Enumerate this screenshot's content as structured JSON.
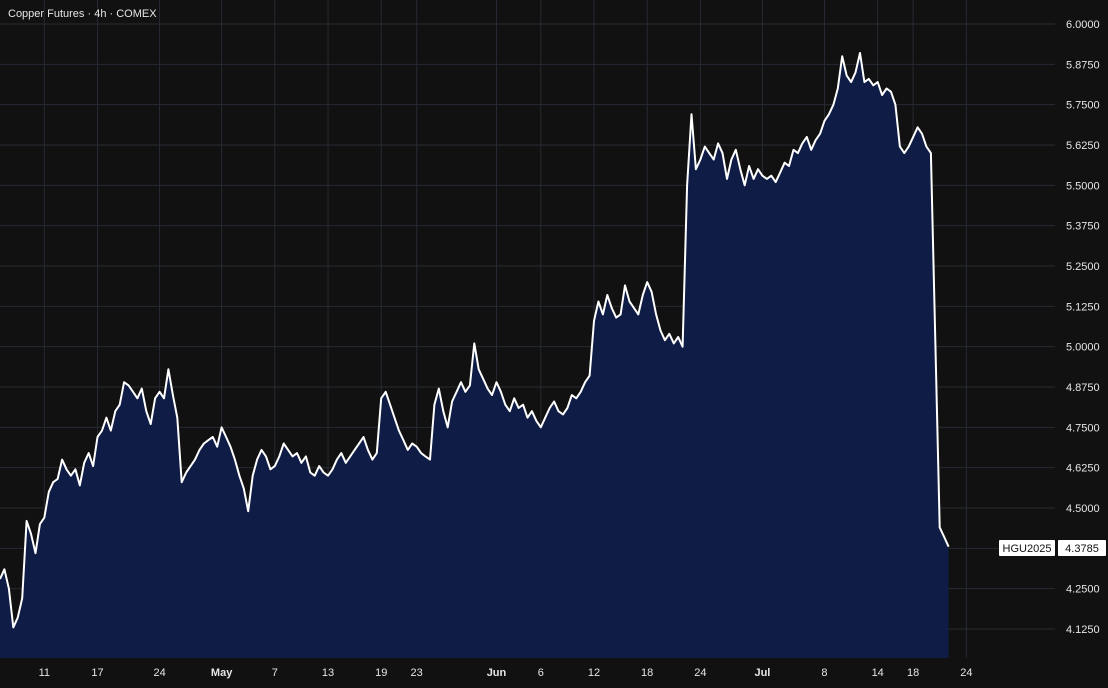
{
  "header": {
    "title": "Copper Futures · 4h · COMEX"
  },
  "colors": {
    "background": "#111111",
    "grid": "#262a33",
    "line": "#ffffff",
    "area_fill": "#0f1c45",
    "axis_text": "#e6e6e6",
    "tag_bg": "#ffffff",
    "tag_text": "#111111"
  },
  "chart_data": {
    "type": "area",
    "title": "Copper Futures · 4h · COMEX",
    "xlabel": "",
    "ylabel": "",
    "ylim": [
      4.03,
      6.02
    ],
    "grid": true,
    "y_ticks": [
      "6.0000",
      "5.8750",
      "5.7500",
      "5.6250",
      "5.5000",
      "5.3750",
      "5.2500",
      "5.1250",
      "5.0000",
      "4.8750",
      "4.7500",
      "4.6250",
      "4.5000",
      "4.3750",
      "4.2500",
      "4.1250"
    ],
    "y_tick_values": [
      6.0,
      5.875,
      5.75,
      5.625,
      5.5,
      5.375,
      5.25,
      5.125,
      5.0,
      4.875,
      4.75,
      4.625,
      4.5,
      4.375,
      4.25,
      4.125
    ],
    "x_ticks": [
      {
        "label": "11",
        "day": 11
      },
      {
        "label": "17",
        "day": 17
      },
      {
        "label": "24",
        "day": 24
      },
      {
        "label": "May",
        "day": 31,
        "bold": true
      },
      {
        "label": "7",
        "day": 37
      },
      {
        "label": "13",
        "day": 43
      },
      {
        "label": "19",
        "day": 49
      },
      {
        "label": "23",
        "day": 53
      },
      {
        "label": "Jun",
        "day": 62,
        "bold": true
      },
      {
        "label": "6",
        "day": 67
      },
      {
        "label": "12",
        "day": 73
      },
      {
        "label": "18",
        "day": 79
      },
      {
        "label": "24",
        "day": 85
      },
      {
        "label": "Jul",
        "day": 92,
        "bold": true
      },
      {
        "label": "8",
        "day": 99
      },
      {
        "label": "14",
        "day": 105
      },
      {
        "label": "18",
        "day": 109
      },
      {
        "label": "24",
        "day": 115
      }
    ],
    "xlim": [
      6,
      125
    ],
    "series": [
      {
        "points": [
          [
            6.0,
            4.28
          ],
          [
            6.5,
            4.31
          ],
          [
            7.0,
            4.25
          ],
          [
            7.5,
            4.13
          ],
          [
            8.0,
            4.16
          ],
          [
            8.5,
            4.22
          ],
          [
            9.0,
            4.46
          ],
          [
            9.5,
            4.42
          ],
          [
            10.0,
            4.36
          ],
          [
            10.5,
            4.45
          ],
          [
            11.0,
            4.47
          ],
          [
            11.5,
            4.55
          ],
          [
            12.0,
            4.58
          ],
          [
            12.5,
            4.59
          ],
          [
            13.0,
            4.65
          ],
          [
            13.5,
            4.62
          ],
          [
            14.0,
            4.6
          ],
          [
            14.5,
            4.62
          ],
          [
            15.0,
            4.57
          ],
          [
            15.5,
            4.64
          ],
          [
            16.0,
            4.67
          ],
          [
            16.5,
            4.63
          ],
          [
            17.0,
            4.72
          ],
          [
            17.5,
            4.74
          ],
          [
            18.0,
            4.78
          ],
          [
            18.5,
            4.74
          ],
          [
            19.0,
            4.8
          ],
          [
            19.5,
            4.82
          ],
          [
            20.0,
            4.89
          ],
          [
            20.5,
            4.88
          ],
          [
            21.0,
            4.86
          ],
          [
            21.5,
            4.84
          ],
          [
            22.0,
            4.87
          ],
          [
            22.5,
            4.8
          ],
          [
            23.0,
            4.76
          ],
          [
            23.5,
            4.84
          ],
          [
            24.0,
            4.86
          ],
          [
            24.5,
            4.84
          ],
          [
            25.0,
            4.93
          ],
          [
            25.5,
            4.85
          ],
          [
            26.0,
            4.78
          ],
          [
            26.5,
            4.58
          ],
          [
            27.0,
            4.61
          ],
          [
            27.5,
            4.63
          ],
          [
            28.0,
            4.65
          ],
          [
            28.5,
            4.68
          ],
          [
            29.0,
            4.7
          ],
          [
            29.5,
            4.71
          ],
          [
            30.0,
            4.72
          ],
          [
            30.5,
            4.69
          ],
          [
            31.0,
            4.75
          ],
          [
            31.5,
            4.72
          ],
          [
            32.0,
            4.69
          ],
          [
            32.5,
            4.65
          ],
          [
            33.0,
            4.6
          ],
          [
            33.5,
            4.56
          ],
          [
            34.0,
            4.49
          ],
          [
            34.5,
            4.6
          ],
          [
            35.0,
            4.65
          ],
          [
            35.5,
            4.68
          ],
          [
            36.0,
            4.66
          ],
          [
            36.5,
            4.62
          ],
          [
            37.0,
            4.63
          ],
          [
            37.5,
            4.66
          ],
          [
            38.0,
            4.7
          ],
          [
            38.5,
            4.68
          ],
          [
            39.0,
            4.66
          ],
          [
            39.5,
            4.67
          ],
          [
            40.0,
            4.64
          ],
          [
            40.5,
            4.66
          ],
          [
            41.0,
            4.61
          ],
          [
            41.5,
            4.6
          ],
          [
            42.0,
            4.63
          ],
          [
            42.5,
            4.61
          ],
          [
            43.0,
            4.6
          ],
          [
            43.5,
            4.62
          ],
          [
            44.0,
            4.65
          ],
          [
            44.5,
            4.67
          ],
          [
            45.0,
            4.64
          ],
          [
            45.5,
            4.66
          ],
          [
            46.0,
            4.68
          ],
          [
            46.5,
            4.7
          ],
          [
            47.0,
            4.72
          ],
          [
            47.5,
            4.68
          ],
          [
            48.0,
            4.65
          ],
          [
            48.5,
            4.67
          ],
          [
            49.0,
            4.84
          ],
          [
            49.5,
            4.86
          ],
          [
            50.0,
            4.82
          ],
          [
            50.5,
            4.78
          ],
          [
            51.0,
            4.74
          ],
          [
            51.5,
            4.71
          ],
          [
            52.0,
            4.68
          ],
          [
            52.5,
            4.7
          ],
          [
            53.0,
            4.69
          ],
          [
            53.5,
            4.67
          ],
          [
            54.0,
            4.66
          ],
          [
            54.5,
            4.65
          ],
          [
            55.0,
            4.82
          ],
          [
            55.5,
            4.87
          ],
          [
            56.0,
            4.8
          ],
          [
            56.5,
            4.75
          ],
          [
            57.0,
            4.83
          ],
          [
            57.5,
            4.86
          ],
          [
            58.0,
            4.89
          ],
          [
            58.5,
            4.86
          ],
          [
            59.0,
            4.88
          ],
          [
            59.5,
            5.01
          ],
          [
            60.0,
            4.93
          ],
          [
            60.5,
            4.9
          ],
          [
            61.0,
            4.87
          ],
          [
            61.5,
            4.85
          ],
          [
            62.0,
            4.89
          ],
          [
            62.5,
            4.86
          ],
          [
            63.0,
            4.82
          ],
          [
            63.5,
            4.8
          ],
          [
            64.0,
            4.84
          ],
          [
            64.5,
            4.81
          ],
          [
            65.0,
            4.82
          ],
          [
            65.5,
            4.78
          ],
          [
            66.0,
            4.8
          ],
          [
            66.5,
            4.77
          ],
          [
            67.0,
            4.75
          ],
          [
            67.5,
            4.78
          ],
          [
            68.0,
            4.81
          ],
          [
            68.5,
            4.83
          ],
          [
            69.0,
            4.8
          ],
          [
            69.5,
            4.79
          ],
          [
            70.0,
            4.81
          ],
          [
            70.5,
            4.85
          ],
          [
            71.0,
            4.84
          ],
          [
            71.5,
            4.86
          ],
          [
            72.0,
            4.89
          ],
          [
            72.5,
            4.91
          ],
          [
            73.0,
            5.08
          ],
          [
            73.5,
            5.14
          ],
          [
            74.0,
            5.1
          ],
          [
            74.5,
            5.16
          ],
          [
            75.0,
            5.12
          ],
          [
            75.5,
            5.09
          ],
          [
            76.0,
            5.1
          ],
          [
            76.5,
            5.19
          ],
          [
            77.0,
            5.14
          ],
          [
            77.5,
            5.12
          ],
          [
            78.0,
            5.1
          ],
          [
            78.5,
            5.16
          ],
          [
            79.0,
            5.2
          ],
          [
            79.5,
            5.17
          ],
          [
            80.0,
            5.1
          ],
          [
            80.5,
            5.05
          ],
          [
            81.0,
            5.02
          ],
          [
            81.5,
            5.04
          ],
          [
            82.0,
            5.01
          ],
          [
            82.5,
            5.03
          ],
          [
            83.0,
            5.0
          ],
          [
            83.5,
            5.5
          ],
          [
            84.0,
            5.72
          ],
          [
            84.5,
            5.55
          ],
          [
            85.0,
            5.58
          ],
          [
            85.5,
            5.62
          ],
          [
            86.0,
            5.6
          ],
          [
            86.5,
            5.58
          ],
          [
            87.0,
            5.63
          ],
          [
            87.5,
            5.6
          ],
          [
            88.0,
            5.52
          ],
          [
            88.5,
            5.58
          ],
          [
            89.0,
            5.61
          ],
          [
            89.5,
            5.55
          ],
          [
            90.0,
            5.5
          ],
          [
            90.5,
            5.56
          ],
          [
            91.0,
            5.52
          ],
          [
            91.5,
            5.55
          ],
          [
            92.0,
            5.53
          ],
          [
            92.5,
            5.52
          ],
          [
            93.0,
            5.53
          ],
          [
            93.5,
            5.51
          ],
          [
            94.0,
            5.54
          ],
          [
            94.5,
            5.57
          ],
          [
            95.0,
            5.56
          ],
          [
            95.5,
            5.61
          ],
          [
            96.0,
            5.6
          ],
          [
            96.5,
            5.63
          ],
          [
            97.0,
            5.65
          ],
          [
            97.5,
            5.61
          ],
          [
            98.0,
            5.64
          ],
          [
            98.5,
            5.66
          ],
          [
            99.0,
            5.7
          ],
          [
            99.5,
            5.72
          ],
          [
            100.0,
            5.75
          ],
          [
            100.5,
            5.8
          ],
          [
            101.0,
            5.9
          ],
          [
            101.5,
            5.84
          ],
          [
            102.0,
            5.82
          ],
          [
            102.5,
            5.85
          ],
          [
            103.0,
            5.91
          ],
          [
            103.5,
            5.82
          ],
          [
            104.0,
            5.83
          ],
          [
            104.5,
            5.81
          ],
          [
            105.0,
            5.82
          ],
          [
            105.5,
            5.78
          ],
          [
            106.0,
            5.8
          ],
          [
            106.5,
            5.79
          ],
          [
            107.0,
            5.75
          ],
          [
            107.5,
            5.62
          ],
          [
            108.0,
            5.6
          ],
          [
            108.5,
            5.62
          ],
          [
            109.0,
            5.65
          ],
          [
            109.5,
            5.68
          ],
          [
            110.0,
            5.66
          ],
          [
            110.5,
            5.62
          ],
          [
            111.0,
            5.6
          ],
          [
            112.0,
            4.44
          ],
          [
            112.5,
            4.41
          ],
          [
            113.0,
            4.38
          ]
        ]
      }
    ],
    "last_value": {
      "symbol": "HGU2025",
      "value": "4.3785"
    }
  }
}
